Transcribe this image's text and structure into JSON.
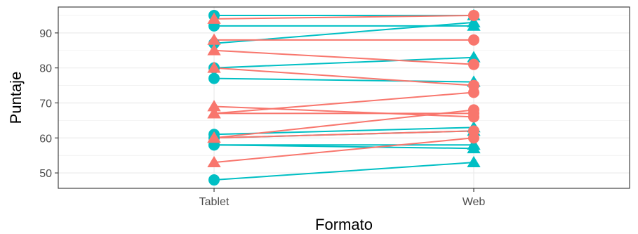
{
  "chart_data": {
    "type": "line",
    "xlabel": "Formato",
    "ylabel": "Puntaje",
    "categories": [
      "Tablet",
      "Web"
    ],
    "x_range": [
      0.4,
      2.6
    ],
    "ylim": [
      45.6,
      97.4
    ],
    "yticks": [
      50,
      60,
      70,
      80,
      90
    ],
    "grid": true,
    "legend": "none",
    "colors": {
      "teal": "#00bfc4",
      "salmon": "#f8766d",
      "grid": "#ebebeb",
      "border": "#333333"
    },
    "series": [
      {
        "color": "teal",
        "points": [
          {
            "x": "Tablet",
            "y": 95,
            "shape": "circle"
          },
          {
            "x": "Web",
            "y": 95,
            "shape": "triangle"
          }
        ]
      },
      {
        "color": "teal",
        "points": [
          {
            "x": "Tablet",
            "y": 92,
            "shape": "circle"
          },
          {
            "x": "Web",
            "y": 92,
            "shape": "triangle"
          }
        ]
      },
      {
        "color": "teal",
        "points": [
          {
            "x": "Tablet",
            "y": 87,
            "shape": "circle"
          },
          {
            "x": "Web",
            "y": 93,
            "shape": "triangle"
          }
        ]
      },
      {
        "color": "teal",
        "points": [
          {
            "x": "Tablet",
            "y": 80,
            "shape": "circle"
          },
          {
            "x": "Web",
            "y": 83,
            "shape": "triangle"
          }
        ]
      },
      {
        "color": "teal",
        "points": [
          {
            "x": "Tablet",
            "y": 77,
            "shape": "circle"
          },
          {
            "x": "Web",
            "y": 76,
            "shape": "triangle"
          }
        ]
      },
      {
        "color": "teal",
        "points": [
          {
            "x": "Tablet",
            "y": 61,
            "shape": "circle"
          },
          {
            "x": "Web",
            "y": 63,
            "shape": "triangle"
          }
        ]
      },
      {
        "color": "teal",
        "points": [
          {
            "x": "Tablet",
            "y": 60,
            "shape": "circle"
          },
          {
            "x": "Web",
            "y": 62,
            "shape": "triangle"
          }
        ]
      },
      {
        "color": "teal",
        "points": [
          {
            "x": "Tablet",
            "y": 58,
            "shape": "circle"
          },
          {
            "x": "Web",
            "y": 58,
            "shape": "triangle"
          }
        ]
      },
      {
        "color": "teal",
        "points": [
          {
            "x": "Tablet",
            "y": 58,
            "shape": "circle"
          },
          {
            "x": "Web",
            "y": 57,
            "shape": "triangle"
          }
        ]
      },
      {
        "color": "teal",
        "points": [
          {
            "x": "Tablet",
            "y": 48,
            "shape": "circle"
          },
          {
            "x": "Web",
            "y": 53,
            "shape": "triangle"
          }
        ]
      },
      {
        "color": "salmon",
        "points": [
          {
            "x": "Tablet",
            "y": 94,
            "shape": "triangle"
          },
          {
            "x": "Web",
            "y": 95,
            "shape": "circle"
          }
        ]
      },
      {
        "color": "salmon",
        "points": [
          {
            "x": "Tablet",
            "y": 88,
            "shape": "triangle"
          },
          {
            "x": "Web",
            "y": 88,
            "shape": "circle"
          }
        ]
      },
      {
        "color": "salmon",
        "points": [
          {
            "x": "Tablet",
            "y": 85,
            "shape": "triangle"
          },
          {
            "x": "Web",
            "y": 81,
            "shape": "circle"
          }
        ]
      },
      {
        "color": "salmon",
        "points": [
          {
            "x": "Tablet",
            "y": 80,
            "shape": "triangle"
          },
          {
            "x": "Web",
            "y": 75,
            "shape": "circle"
          }
        ]
      },
      {
        "color": "salmon",
        "points": [
          {
            "x": "Tablet",
            "y": 69,
            "shape": "triangle"
          },
          {
            "x": "Web",
            "y": 66,
            "shape": "circle"
          }
        ]
      },
      {
        "color": "salmon",
        "points": [
          {
            "x": "Tablet",
            "y": 67,
            "shape": "triangle"
          },
          {
            "x": "Web",
            "y": 73,
            "shape": "circle"
          }
        ]
      },
      {
        "color": "salmon",
        "points": [
          {
            "x": "Tablet",
            "y": 67,
            "shape": "triangle"
          },
          {
            "x": "Web",
            "y": 67,
            "shape": "circle"
          }
        ]
      },
      {
        "color": "salmon",
        "points": [
          {
            "x": "Tablet",
            "y": 60,
            "shape": "triangle"
          },
          {
            "x": "Web",
            "y": 68,
            "shape": "circle"
          }
        ]
      },
      {
        "color": "salmon",
        "points": [
          {
            "x": "Tablet",
            "y": 60,
            "shape": "triangle"
          },
          {
            "x": "Web",
            "y": 62,
            "shape": "circle"
          }
        ]
      },
      {
        "color": "salmon",
        "points": [
          {
            "x": "Tablet",
            "y": 53,
            "shape": "triangle"
          },
          {
            "x": "Web",
            "y": 60,
            "shape": "circle"
          }
        ]
      }
    ]
  }
}
